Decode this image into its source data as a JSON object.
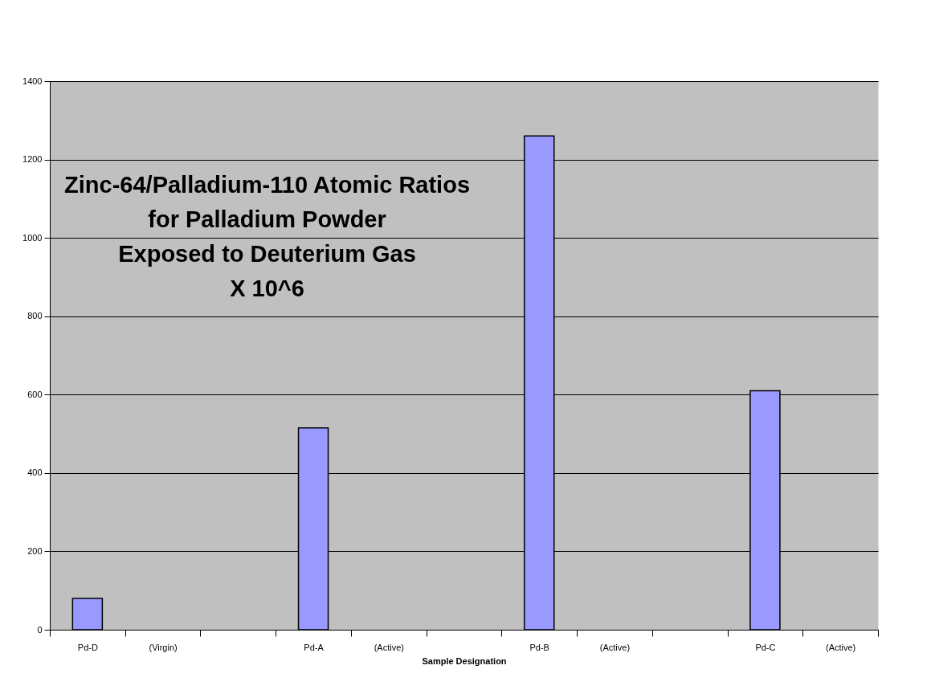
{
  "chart_data": {
    "type": "bar",
    "title": "Zinc-64/Palladium-110 Atomic Ratios\nfor Palladium Powder\nExposed to Deuterium Gas\nX 10^6",
    "xlabel": "Sample Designation",
    "categories": [
      "Pd-D",
      "(Virgin)",
      null,
      "Pd-A",
      "(Active)",
      null,
      "Pd-B",
      "(Active)",
      null,
      "Pd-C",
      "(Active)"
    ],
    "values": [
      80,
      null,
      null,
      515,
      null,
      null,
      1260,
      null,
      null,
      610,
      null
    ],
    "color": "#9999ff",
    "ylim": [
      0,
      1400
    ],
    "yticks": [
      0,
      200,
      400,
      600,
      800,
      1000,
      1200,
      1400
    ],
    "grid": "y"
  }
}
